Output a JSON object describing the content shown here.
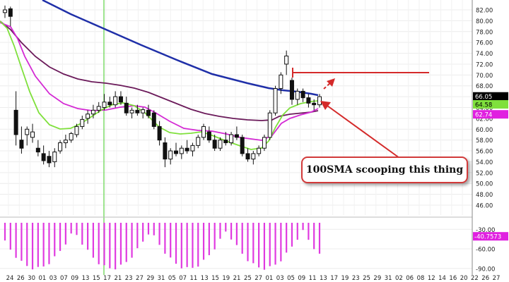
{
  "chart_data": {
    "type": "candlestick",
    "y_ticks": [
      "82.00",
      "80.00",
      "78.00",
      "76.00",
      "74.00",
      "72.00",
      "70.00",
      "68.00",
      "66.00",
      "64.00",
      "62.00",
      "60.00",
      "58.00",
      "56.00",
      "54.00",
      "52.00",
      "50.00",
      "48.00",
      "46.00"
    ],
    "ylim": [
      44,
      83
    ],
    "x_ticks": [
      "24",
      "26",
      "30",
      "01",
      "03",
      "07",
      "09",
      "13",
      "15",
      "17",
      "21",
      "23",
      "27",
      "29",
      "31",
      "05",
      "07",
      "11",
      "13",
      "15",
      "19",
      "21",
      "25",
      "27",
      "01",
      "03",
      "05",
      "09",
      "11",
      "13",
      "17",
      "19",
      "23",
      "25",
      "29",
      "31",
      "02",
      "06",
      "08",
      "12",
      "14",
      "16",
      "20",
      "22",
      "26",
      "27"
    ],
    "price_labels": [
      {
        "text": "66.05",
        "value": 66.05,
        "color": "#000000",
        "text_color": "#ffffff"
      },
      {
        "text": "64.58",
        "value": 64.58,
        "color": "#7fe03c",
        "text_color": "#000000"
      },
      {
        "text": "62.74",
        "value": 62.74,
        "color": "#e020e0",
        "text_color": "#ffffff"
      }
    ],
    "indicator": {
      "y_ticks": [
        "-30.00",
        "-60.00",
        "-90.00"
      ],
      "ylim": [
        -100,
        -20
      ],
      "label": {
        "text": "-40.7573",
        "value": -40.7573,
        "color": "#e020e0"
      }
    },
    "candles": [
      {
        "o": 81.5,
        "h": 82.8,
        "l": 80.5,
        "c": 82.0
      },
      {
        "o": 82.2,
        "h": 82.6,
        "l": 79.0,
        "c": 80.8
      },
      {
        "o": 63.5,
        "h": 67.0,
        "l": 57.0,
        "c": 59.0
      },
      {
        "o": 58.0,
        "h": 60.5,
        "l": 55.5,
        "c": 56.5
      },
      {
        "o": 59.0,
        "h": 60.5,
        "l": 57.0,
        "c": 60.0
      },
      {
        "o": 58.5,
        "h": 61.0,
        "l": 57.5,
        "c": 59.5
      },
      {
        "o": 56.5,
        "h": 58.0,
        "l": 55.0,
        "c": 55.8
      },
      {
        "o": 55.5,
        "h": 57.0,
        "l": 53.5,
        "c": 54.2
      },
      {
        "o": 55.0,
        "h": 56.0,
        "l": 53.0,
        "c": 53.8
      },
      {
        "o": 54.0,
        "h": 56.5,
        "l": 53.0,
        "c": 55.8
      },
      {
        "o": 56.0,
        "h": 58.0,
        "l": 55.5,
        "c": 57.5
      },
      {
        "o": 57.5,
        "h": 59.0,
        "l": 56.5,
        "c": 58.0
      },
      {
        "o": 58.0,
        "h": 59.5,
        "l": 57.5,
        "c": 59.2
      },
      {
        "o": 59.0,
        "h": 61.0,
        "l": 58.5,
        "c": 60.5
      },
      {
        "o": 60.5,
        "h": 62.5,
        "l": 60.0,
        "c": 61.8
      },
      {
        "o": 62.0,
        "h": 63.5,
        "l": 61.0,
        "c": 62.8
      },
      {
        "o": 62.8,
        "h": 64.5,
        "l": 62.0,
        "c": 63.5
      },
      {
        "o": 63.5,
        "h": 65.0,
        "l": 63.0,
        "c": 64.2
      },
      {
        "o": 64.0,
        "h": 66.5,
        "l": 63.5,
        "c": 65.0
      },
      {
        "o": 65.0,
        "h": 66.0,
        "l": 64.0,
        "c": 64.5
      },
      {
        "o": 64.5,
        "h": 67.0,
        "l": 64.0,
        "c": 66.0
      },
      {
        "o": 66.0,
        "h": 67.0,
        "l": 64.5,
        "c": 65.0
      },
      {
        "o": 64.8,
        "h": 66.0,
        "l": 62.5,
        "c": 63.0
      },
      {
        "o": 63.0,
        "h": 64.0,
        "l": 62.0,
        "c": 63.5
      },
      {
        "o": 63.5,
        "h": 64.5,
        "l": 62.5,
        "c": 63.0
      },
      {
        "o": 63.0,
        "h": 64.0,
        "l": 62.0,
        "c": 63.6
      },
      {
        "o": 63.5,
        "h": 64.5,
        "l": 62.0,
        "c": 62.5
      },
      {
        "o": 63.0,
        "h": 63.5,
        "l": 60.0,
        "c": 60.5
      },
      {
        "o": 60.5,
        "h": 61.5,
        "l": 57.0,
        "c": 58.0
      },
      {
        "o": 57.5,
        "h": 58.5,
        "l": 53.0,
        "c": 54.5
      },
      {
        "o": 54.5,
        "h": 56.5,
        "l": 53.5,
        "c": 56.0
      },
      {
        "o": 56.0,
        "h": 57.5,
        "l": 55.0,
        "c": 55.5
      },
      {
        "o": 55.5,
        "h": 57.0,
        "l": 54.5,
        "c": 56.5
      },
      {
        "o": 56.5,
        "h": 58.0,
        "l": 55.5,
        "c": 56.0
      },
      {
        "o": 56.0,
        "h": 57.5,
        "l": 55.0,
        "c": 57.0
      },
      {
        "o": 57.0,
        "h": 59.0,
        "l": 56.5,
        "c": 58.5
      },
      {
        "o": 58.5,
        "h": 61.0,
        "l": 58.0,
        "c": 60.5
      },
      {
        "o": 59.5,
        "h": 60.5,
        "l": 57.5,
        "c": 58.0
      },
      {
        "o": 58.0,
        "h": 59.0,
        "l": 56.0,
        "c": 56.5
      },
      {
        "o": 56.5,
        "h": 58.5,
        "l": 56.0,
        "c": 58.0
      },
      {
        "o": 58.0,
        "h": 59.5,
        "l": 57.0,
        "c": 57.5
      },
      {
        "o": 57.5,
        "h": 59.5,
        "l": 57.0,
        "c": 59.0
      },
      {
        "o": 59.0,
        "h": 60.5,
        "l": 58.0,
        "c": 58.5
      },
      {
        "o": 58.5,
        "h": 59.0,
        "l": 55.0,
        "c": 55.5
      },
      {
        "o": 55.5,
        "h": 56.5,
        "l": 54.0,
        "c": 54.5
      },
      {
        "o": 54.5,
        "h": 56.0,
        "l": 53.5,
        "c": 55.5
      },
      {
        "o": 55.5,
        "h": 57.0,
        "l": 55.0,
        "c": 56.5
      },
      {
        "o": 56.5,
        "h": 59.0,
        "l": 56.0,
        "c": 58.5
      },
      {
        "o": 58.5,
        "h": 63.5,
        "l": 58.0,
        "c": 63.0
      },
      {
        "o": 63.0,
        "h": 68.0,
        "l": 62.5,
        "c": 67.5
      },
      {
        "o": 67.5,
        "h": 70.5,
        "l": 66.5,
        "c": 70.0
      },
      {
        "o": 72.0,
        "h": 74.5,
        "l": 70.0,
        "c": 73.5
      },
      {
        "o": 69.0,
        "h": 69.5,
        "l": 64.5,
        "c": 65.5
      },
      {
        "o": 65.5,
        "h": 67.5,
        "l": 64.5,
        "c": 67.0
      },
      {
        "o": 67.0,
        "h": 67.5,
        "l": 65.0,
        "c": 65.8
      },
      {
        "o": 65.8,
        "h": 66.5,
        "l": 64.0,
        "c": 64.8
      },
      {
        "o": 64.8,
        "h": 65.5,
        "l": 63.5,
        "c": 64.5
      },
      {
        "o": 64.5,
        "h": 66.5,
        "l": 64.0,
        "c": 66.0
      }
    ]
  },
  "callout": {
    "text": "100SMA scooping this thing"
  },
  "colors": {
    "sma100": "#1f2fa8",
    "sma_maroon": "#6b1a5a",
    "sma_magenta": "#d42ad4",
    "sma_green": "#7fe03c",
    "annotation": "#d42a2a",
    "histogram": "#e03ae0"
  }
}
